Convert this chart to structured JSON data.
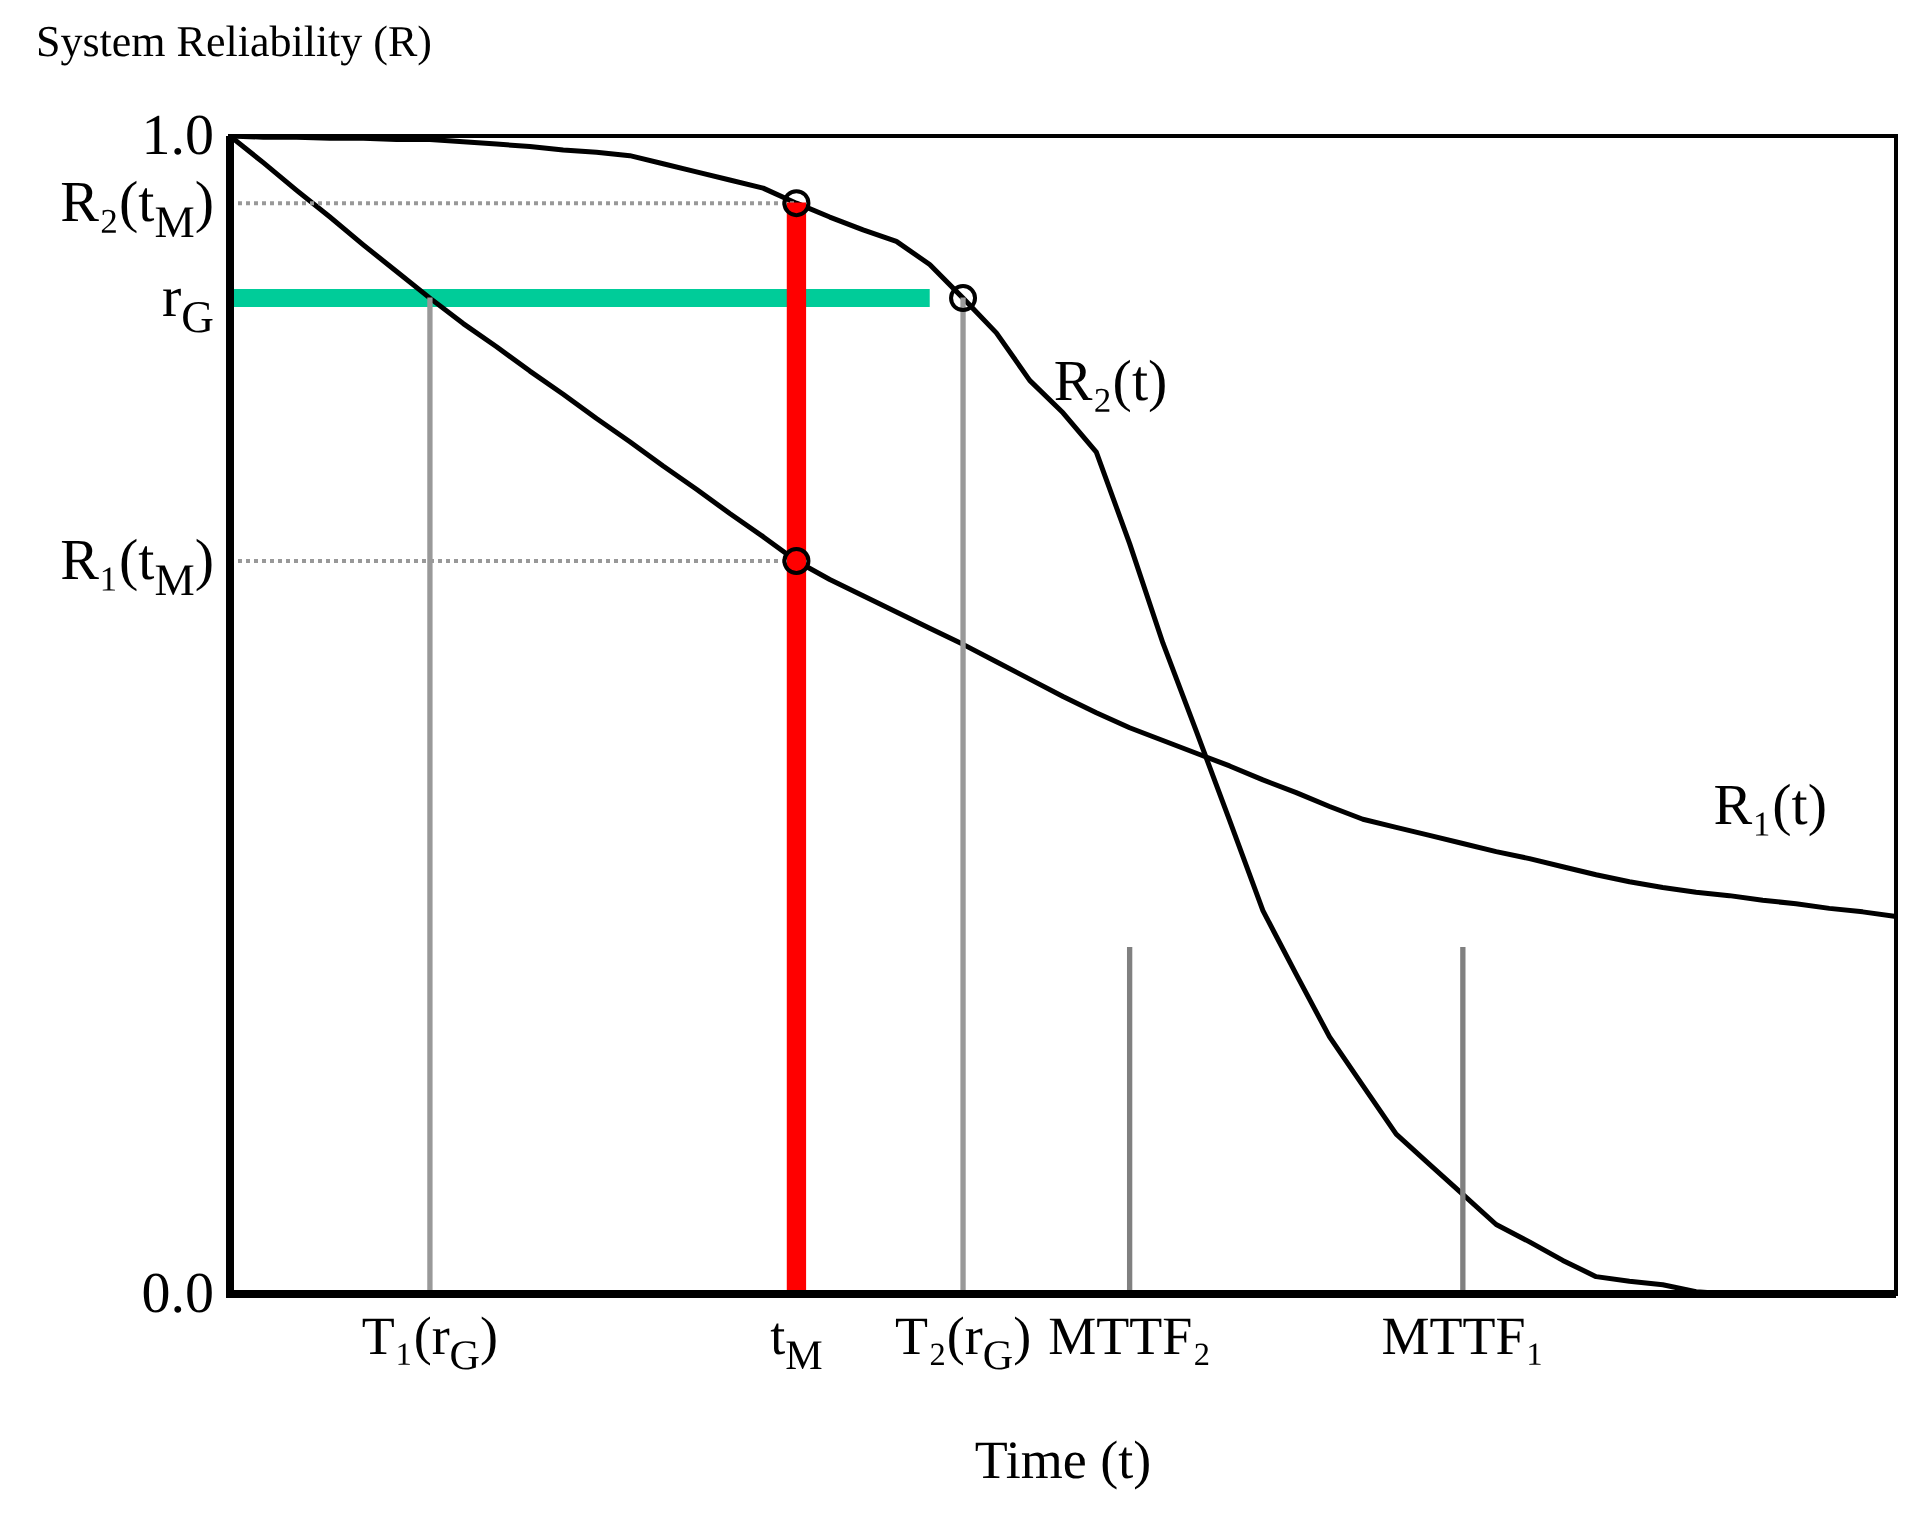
{
  "chart_data": {
    "type": "line",
    "xlabel": "Time (t)",
    "ylabel": "System Reliability (R)",
    "ylim": [
      0,
      1
    ],
    "yticks": [
      {
        "value": 0,
        "label": "0.0"
      },
      {
        "value": 0.633,
        "label": "R₁(t$_{M}$)"
      },
      {
        "value": 0.86,
        "label": "r$_{G}$"
      },
      {
        "value": 0.942,
        "label": "R₂(t$_{M}$)"
      },
      {
        "value": 1,
        "label": "1.0"
      }
    ],
    "categories": [
      null,
      null,
      null,
      null,
      null,
      null,
      "T₁(r$_{G}$)",
      null,
      null,
      null,
      null,
      null,
      null,
      null,
      null,
      null,
      null,
      "t$_{M}$",
      null,
      null,
      null,
      null,
      "T₂(r$_{G}$)",
      null,
      null,
      null,
      null,
      "MTTF₂",
      null,
      null,
      null,
      null,
      null,
      null,
      null,
      null,
      null,
      "MTTF₁",
      null,
      null,
      null,
      null,
      null,
      null,
      null,
      null,
      null,
      null,
      null,
      null,
      null
    ],
    "series": [
      {
        "type": "line",
        "color": "#999999",
        "line_style": "dotted",
        "values": [
          0.942,
          null,
          null,
          null,
          null,
          null,
          null,
          null,
          null,
          null,
          null,
          null,
          null,
          null,
          null,
          null,
          null,
          0.942,
          null,
          null,
          null,
          null,
          null,
          null,
          null,
          null,
          null,
          null,
          null,
          null,
          null,
          null,
          null,
          null,
          null,
          null,
          null,
          null,
          null,
          null,
          null,
          null,
          null,
          null,
          null,
          null,
          null,
          null,
          null,
          null,
          null
        ]
      },
      {
        "type": "line",
        "color": "#999999",
        "line_style": "dotted",
        "values": [
          0.633,
          null,
          null,
          null,
          null,
          null,
          null,
          null,
          null,
          null,
          null,
          null,
          null,
          null,
          null,
          null,
          null,
          0.633,
          null,
          null,
          null,
          null,
          null,
          null,
          null,
          null,
          null,
          null,
          null,
          null,
          null,
          null,
          null,
          null,
          null,
          null,
          null,
          null,
          null,
          null,
          null,
          null,
          null,
          null,
          null,
          null,
          null,
          null,
          null,
          null,
          null
        ]
      },
      {
        "type": "bar",
        "color": "#999999",
        "line_style": "dotted",
        "values": [
          null,
          null,
          null,
          null,
          null,
          null,
          0.86,
          null,
          null,
          null,
          null,
          null,
          null,
          null,
          null,
          null,
          null,
          null,
          null,
          null,
          null,
          null,
          0.86,
          null,
          null,
          null,
          null,
          null,
          null,
          null,
          null,
          null,
          null,
          null,
          null,
          null,
          null,
          null,
          null,
          null,
          null,
          null,
          null,
          null,
          null,
          null,
          null,
          null,
          null,
          null,
          null
        ]
      },
      {
        "type": "bar",
        "color": "#808080",
        "line_style": "dotted",
        "values": [
          null,
          null,
          null,
          null,
          null,
          null,
          null,
          null,
          null,
          null,
          null,
          null,
          null,
          null,
          null,
          null,
          null,
          null,
          null,
          null,
          null,
          null,
          null,
          null,
          null,
          null,
          null,
          0.299,
          null,
          null,
          null,
          null,
          null,
          null,
          null,
          null,
          null,
          0.299,
          null,
          null,
          null,
          null,
          null,
          null,
          null,
          null,
          null,
          null,
          null,
          null,
          null
        ]
      },
      {
        "type": "line",
        "color": "#00cc99",
        "line_style": "solid",
        "values": [
          0.86,
          null,
          null,
          null,
          null,
          null,
          null,
          null,
          null,
          null,
          null,
          null,
          null,
          null,
          null,
          null,
          null,
          null,
          null,
          null,
          null,
          0.86,
          null,
          null,
          null,
          null,
          null,
          null,
          null,
          null,
          null,
          null,
          null,
          null,
          null,
          null,
          null,
          null,
          null,
          null,
          null,
          null,
          null,
          null,
          null,
          null,
          null,
          null,
          null,
          null,
          null
        ]
      },
      {
        "type": "bar",
        "color": "#ff0000",
        "line_style": "solid",
        "values": [
          null,
          null,
          null,
          null,
          null,
          null,
          null,
          null,
          null,
          null,
          null,
          null,
          null,
          null,
          null,
          null,
          null,
          0.942,
          null,
          null,
          null,
          null,
          null,
          null,
          null,
          null,
          null,
          null,
          null,
          null,
          null,
          null,
          null,
          null,
          null,
          null,
          null,
          null,
          null,
          null,
          null,
          null,
          null,
          null,
          null,
          null,
          null,
          null,
          null,
          null,
          null
        ]
      },
      {
        "name": "R₁(t)",
        "color": "#000000",
        "line_style": "solid",
        "values": [
          1,
          0.977,
          0.953,
          0.93,
          0.906,
          0.883,
          0.86,
          0.838,
          0.818,
          0.797,
          0.777,
          0.756,
          0.736,
          0.715,
          0.695,
          0.674,
          0.654,
          0.633,
          0.617,
          0.603,
          0.589,
          0.575,
          0.561,
          0.546,
          0.531,
          0.516,
          0.502,
          0.489,
          0.478,
          0.467,
          0.456,
          0.444,
          0.433,
          0.421,
          0.41,
          0.403,
          0.396,
          0.389,
          0.382,
          0.376,
          0.369,
          0.362,
          0.356,
          0.351,
          0.347,
          0.344,
          0.34,
          0.337,
          0.333,
          0.33,
          0.326
        ]
      },
      {
        "name": "R₂(t)",
        "color": "#000000",
        "line_style": "solid",
        "values": [
          1,
          0.999,
          0.999,
          0.998,
          0.998,
          0.997,
          0.997,
          0.995,
          0.993,
          0.991,
          0.988,
          0.986,
          0.983,
          0.976,
          0.969,
          0.962,
          0.955,
          0.942,
          0.93,
          0.919,
          0.909,
          0.889,
          0.86,
          0.83,
          0.789,
          0.761,
          0.727,
          0.648,
          0.562,
          0.486,
          0.409,
          0.331,
          0.276,
          0.222,
          0.18,
          0.138,
          0.112,
          0.086,
          0.06,
          0.045,
          0.029,
          0.015,
          0.011,
          0.008,
          0.002,
          0,
          null,
          null,
          null,
          null,
          null
        ]
      },
      {
        "type": "scatter",
        "color": "#000000",
        "marker": "circle",
        "values": [
          null,
          null,
          null,
          null,
          null,
          null,
          null,
          null,
          null,
          null,
          null,
          null,
          null,
          null,
          null,
          null,
          null,
          0.942,
          null,
          null,
          null,
          null,
          0.86,
          null,
          null,
          null,
          null,
          null,
          null,
          null,
          null,
          null,
          null,
          null,
          null,
          null,
          null,
          null,
          null,
          null,
          null,
          null,
          null,
          null,
          null,
          null,
          null,
          null,
          null,
          null,
          null
        ]
      },
      {
        "type": "scatter",
        "color": "#000000",
        "marker": "circle",
        "values": [
          null,
          null,
          null,
          null,
          null,
          null,
          null,
          null,
          null,
          null,
          null,
          null,
          null,
          null,
          null,
          null,
          null,
          0.633,
          null,
          null,
          null,
          null,
          null,
          null,
          null,
          null,
          null,
          null,
          null,
          null,
          null,
          null,
          null,
          null,
          null,
          null,
          null,
          null,
          null,
          null,
          null,
          null,
          null,
          null,
          null,
          null,
          null,
          null,
          null,
          null,
          null
        ]
      }
    ]
  }
}
